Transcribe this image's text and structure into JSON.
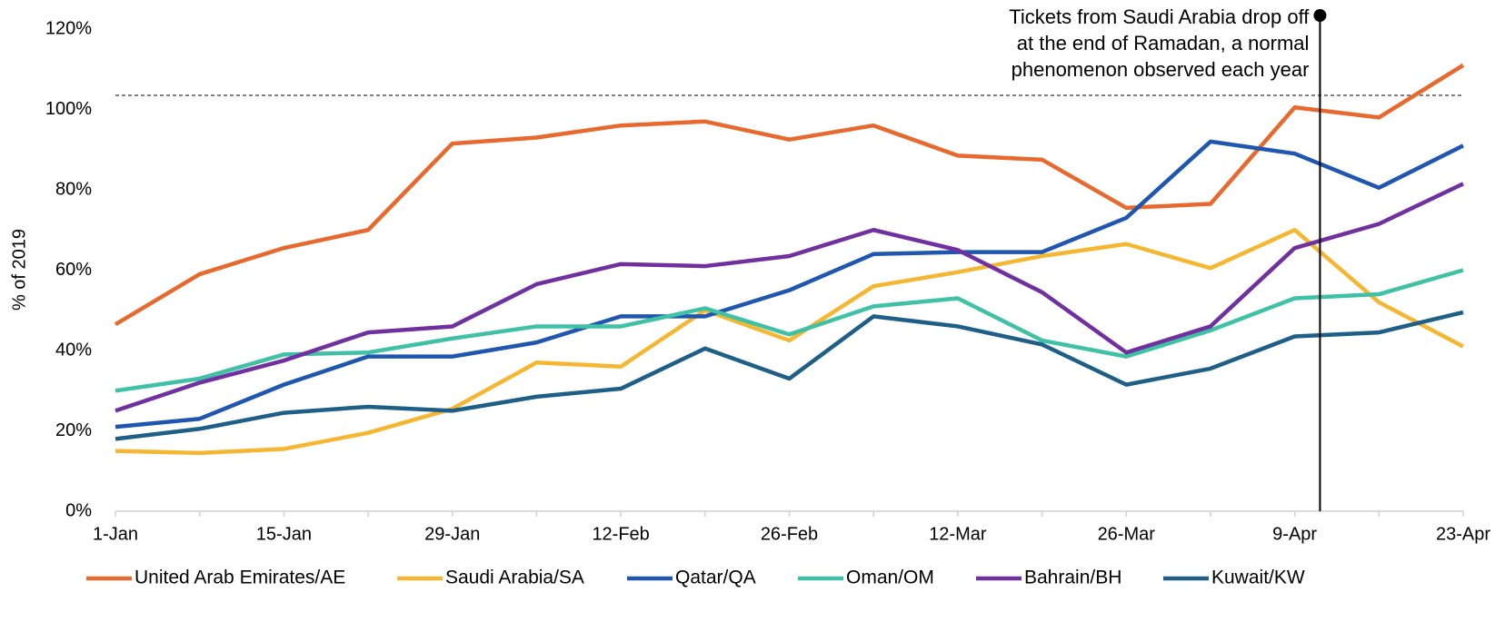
{
  "chart_data": {
    "type": "line",
    "y_axis_label": "% of 2019",
    "categories": [
      "1-Jan",
      null,
      "15-Jan",
      null,
      "29-Jan",
      null,
      "12-Feb",
      null,
      "26-Feb",
      null,
      "12-Mar",
      null,
      "26-Mar",
      null,
      "9-Apr",
      null,
      "23-Apr"
    ],
    "ylim": [
      0,
      120
    ],
    "yticks": [
      {
        "value": 0,
        "label": "0%"
      },
      {
        "value": 20,
        "label": "20%"
      },
      {
        "value": 40,
        "label": "40%"
      },
      {
        "value": 60,
        "label": "60%"
      },
      {
        "value": 80,
        "label": "80%"
      },
      {
        "value": 100,
        "label": "100%"
      },
      {
        "value": 120,
        "label": "120%"
      }
    ],
    "reference_line": 103.5,
    "annotation": {
      "lines": [
        "Tickets from Saudi Arabia drop off",
        "at the end of Ramadan, a normal",
        "phenomenon observed each year"
      ],
      "x_index": 14.3
    },
    "legend": "bottom",
    "series": [
      {
        "name": "United Arab Emirates/AE",
        "color": "#e8692e",
        "values": [
          46.5,
          59,
          65.5,
          70,
          91.5,
          93,
          96,
          97,
          92.5,
          96,
          88.5,
          87.5,
          75.5,
          76.5,
          100.5,
          98,
          111
        ]
      },
      {
        "name": "Saudi Arabia/SA",
        "color": "#f5b731",
        "values": [
          15,
          14.5,
          15.5,
          19.5,
          25.5,
          37,
          36,
          50,
          42.5,
          56,
          59.5,
          63.5,
          66.5,
          60.5,
          70,
          52,
          41
        ]
      },
      {
        "name": "Qatar/QA",
        "color": "#1f56b0",
        "values": [
          21,
          23,
          31.5,
          38.5,
          38.5,
          42,
          48.5,
          48.5,
          55,
          64,
          64.5,
          64.5,
          73,
          92,
          89,
          80.5,
          91
        ]
      },
      {
        "name": "Oman/OM",
        "color": "#3fc1a5",
        "values": [
          30,
          33,
          39,
          39.5,
          43,
          46,
          46,
          50.5,
          44,
          51,
          53,
          42.5,
          38.5,
          45,
          53,
          54,
          60
        ]
      },
      {
        "name": "Bahrain/BH",
        "color": "#7030a0",
        "values": [
          25,
          32,
          37.5,
          44.5,
          46,
          56.5,
          61.5,
          61,
          63.5,
          70,
          65,
          54.5,
          39.5,
          46,
          65.5,
          71.5,
          81.5
        ]
      },
      {
        "name": "Kuwait/KW",
        "color": "#1d5f86",
        "values": [
          18,
          20.5,
          24.5,
          26,
          25,
          28.5,
          30.5,
          40.5,
          33,
          48.5,
          46,
          41.5,
          31.5,
          35.5,
          43.5,
          44.5,
          49.5
        ]
      }
    ]
  }
}
